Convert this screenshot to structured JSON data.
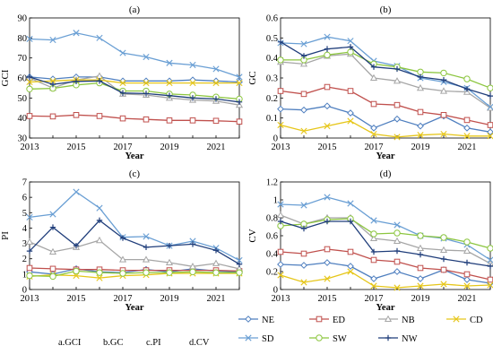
{
  "years": [
    2013,
    2014,
    2015,
    2016,
    2017,
    2018,
    2019,
    2020,
    2021,
    2022
  ],
  "series_styles": [
    {
      "name": "NE",
      "color": "#4f7fbf",
      "marker": "diamond"
    },
    {
      "name": "ED",
      "color": "#c0504d",
      "marker": "square"
    },
    {
      "name": "NB",
      "color": "#a6a6a6",
      "marker": "triangle"
    },
    {
      "name": "CD",
      "color": "#e6c619",
      "marker": "x"
    },
    {
      "name": "SD",
      "color": "#6a9fd4",
      "marker": "x"
    },
    {
      "name": "SW",
      "color": "#8cc63f",
      "marker": "circle"
    },
    {
      "name": "NW",
      "color": "#1f3d7a",
      "marker": "plus"
    }
  ],
  "legend": {
    "items": [
      "NE",
      "ED",
      "NB",
      "CD",
      "SD",
      "SW",
      "NW"
    ],
    "placement": "bottom-right"
  },
  "footnote": [
    "a.GCI",
    "b.GC",
    "c.PI",
    "d.CV"
  ],
  "chart_data": [
    {
      "type": "line",
      "panel": "(a)",
      "ylabel": "GCI",
      "xlabel": "Year",
      "ylim": [
        30,
        90
      ],
      "yticks": [
        30,
        40,
        50,
        60,
        70,
        80,
        90
      ],
      "xticks": [
        2013,
        2015,
        2017,
        2019,
        2021
      ],
      "grid": false,
      "series": [
        {
          "name": "NE",
          "values": [
            60.5,
            59.5,
            60.5,
            60.5,
            58.5,
            58.5,
            58.5,
            59,
            58.5,
            58
          ]
        },
        {
          "name": "ED",
          "values": [
            41,
            40.8,
            41.5,
            41,
            39.8,
            39.3,
            38.8,
            38.8,
            38.6,
            38.2
          ]
        },
        {
          "name": "NB",
          "values": [
            60,
            55,
            59,
            61,
            52,
            51.5,
            50,
            49,
            48.5,
            46.5
          ]
        },
        {
          "name": "CD",
          "values": [
            58,
            58.5,
            59,
            59,
            57.5,
            57.5,
            57.5,
            57.5,
            57.5,
            57.5
          ]
        },
        {
          "name": "SD",
          "values": [
            79.5,
            79,
            82.5,
            80,
            72.5,
            70.5,
            67.5,
            66.5,
            64.5,
            60.5
          ]
        },
        {
          "name": "SW",
          "values": [
            54.5,
            54.8,
            56.5,
            57.5,
            53.5,
            53.5,
            52,
            51.5,
            50.5,
            49.5
          ]
        },
        {
          "name": "NW",
          "values": [
            60.5,
            56.8,
            58.3,
            58.5,
            52.5,
            52.2,
            51.2,
            50,
            49.5,
            48
          ]
        }
      ]
    },
    {
      "type": "line",
      "panel": "(b)",
      "ylabel": "GC",
      "xlabel": "Year",
      "ylim": [
        0,
        0.6
      ],
      "yticks": [
        0,
        0.1,
        0.2,
        0.3,
        0.4,
        0.5,
        0.6
      ],
      "xticks": [
        2013,
        2015,
        2017,
        2019,
        2021
      ],
      "grid": false,
      "series": [
        {
          "name": "NE",
          "values": [
            0.145,
            0.14,
            0.16,
            0.125,
            0.05,
            0.095,
            0.06,
            0.11,
            0.05,
            0.03
          ]
        },
        {
          "name": "ED",
          "values": [
            0.235,
            0.22,
            0.255,
            0.235,
            0.17,
            0.165,
            0.13,
            0.115,
            0.09,
            0.065
          ]
        },
        {
          "name": "NB",
          "values": [
            0.38,
            0.37,
            0.41,
            0.42,
            0.3,
            0.285,
            0.25,
            0.235,
            0.23,
            0.15
          ]
        },
        {
          "name": "CD",
          "values": [
            0.065,
            0.035,
            0.06,
            0.085,
            0.02,
            0.005,
            0.015,
            0.02,
            0.01,
            0.01
          ]
        },
        {
          "name": "SD",
          "values": [
            0.475,
            0.47,
            0.505,
            0.485,
            0.385,
            0.36,
            0.3,
            0.28,
            0.25,
            0.155
          ]
        },
        {
          "name": "SW",
          "values": [
            0.39,
            0.39,
            0.415,
            0.43,
            0.37,
            0.355,
            0.33,
            0.325,
            0.295,
            0.25
          ]
        },
        {
          "name": "NW",
          "values": [
            0.48,
            0.41,
            0.445,
            0.455,
            0.355,
            0.345,
            0.305,
            0.29,
            0.245,
            0.21
          ]
        }
      ]
    },
    {
      "type": "line",
      "panel": "(c)",
      "ylabel": "PI",
      "xlabel": "Year",
      "ylim": [
        0,
        7
      ],
      "yticks": [
        0,
        1,
        2,
        3,
        4,
        5,
        6,
        7
      ],
      "xticks": [
        2013,
        2015,
        2017,
        2019,
        2021
      ],
      "grid": false,
      "series": [
        {
          "name": "NE",
          "values": [
            1.15,
            1.0,
            1.35,
            1.15,
            1.1,
            1.3,
            1.15,
            1.35,
            1.2,
            1.15
          ]
        },
        {
          "name": "ED",
          "values": [
            1.4,
            1.35,
            1.3,
            1.3,
            1.25,
            1.25,
            1.25,
            1.25,
            1.25,
            1.2
          ]
        },
        {
          "name": "NB",
          "values": [
            3.1,
            2.45,
            2.75,
            3.2,
            1.95,
            1.95,
            1.75,
            1.5,
            1.7,
            1.35
          ]
        },
        {
          "name": "CD",
          "values": [
            0.85,
            0.95,
            0.9,
            0.75,
            0.9,
            0.95,
            1.05,
            1.05,
            1.05,
            1.05
          ]
        },
        {
          "name": "SD",
          "values": [
            4.7,
            4.9,
            6.35,
            5.3,
            3.4,
            3.45,
            2.85,
            3.15,
            2.7,
            1.9
          ]
        },
        {
          "name": "SW",
          "values": [
            0.9,
            0.85,
            1.2,
            1.1,
            1.05,
            1.1,
            1.1,
            1.15,
            1.1,
            1.1
          ]
        },
        {
          "name": "NW",
          "values": [
            2.5,
            4.05,
            2.85,
            4.5,
            3.35,
            2.75,
            2.85,
            2.95,
            2.55,
            1.65
          ]
        }
      ]
    },
    {
      "type": "line",
      "panel": "(d)",
      "ylabel": "CV",
      "xlabel": "Year",
      "ylim": [
        0,
        1.2
      ],
      "yticks": [
        0,
        0.2,
        0.4,
        0.6,
        0.8,
        1.0,
        1.2
      ],
      "ytick_labels": [
        "0",
        "0.2",
        "0.4",
        "0.6",
        "0.8",
        "1",
        "1.2"
      ],
      "xticks": [
        2013,
        2015,
        2017,
        2019,
        2021
      ],
      "grid": false,
      "series": [
        {
          "name": "NE",
          "values": [
            0.28,
            0.27,
            0.3,
            0.26,
            0.12,
            0.2,
            0.12,
            0.22,
            0.11,
            0.07
          ]
        },
        {
          "name": "ED",
          "values": [
            0.42,
            0.4,
            0.45,
            0.42,
            0.33,
            0.31,
            0.24,
            0.22,
            0.17,
            0.11
          ]
        },
        {
          "name": "NB",
          "values": [
            0.83,
            0.73,
            0.8,
            0.8,
            0.57,
            0.54,
            0.46,
            0.44,
            0.43,
            0.29
          ]
        },
        {
          "name": "CD",
          "values": [
            0.16,
            0.08,
            0.12,
            0.2,
            0.04,
            0.02,
            0.04,
            0.06,
            0.04,
            0.05
          ]
        },
        {
          "name": "SD",
          "values": [
            0.95,
            0.94,
            1.03,
            0.96,
            0.77,
            0.72,
            0.6,
            0.57,
            0.5,
            0.33
          ]
        },
        {
          "name": "SW",
          "values": [
            0.71,
            0.73,
            0.78,
            0.79,
            0.62,
            0.63,
            0.6,
            0.58,
            0.53,
            0.46
          ]
        },
        {
          "name": "NW",
          "values": [
            0.76,
            0.68,
            0.76,
            0.76,
            0.42,
            0.43,
            0.39,
            0.34,
            0.3,
            0.26
          ]
        }
      ]
    }
  ]
}
